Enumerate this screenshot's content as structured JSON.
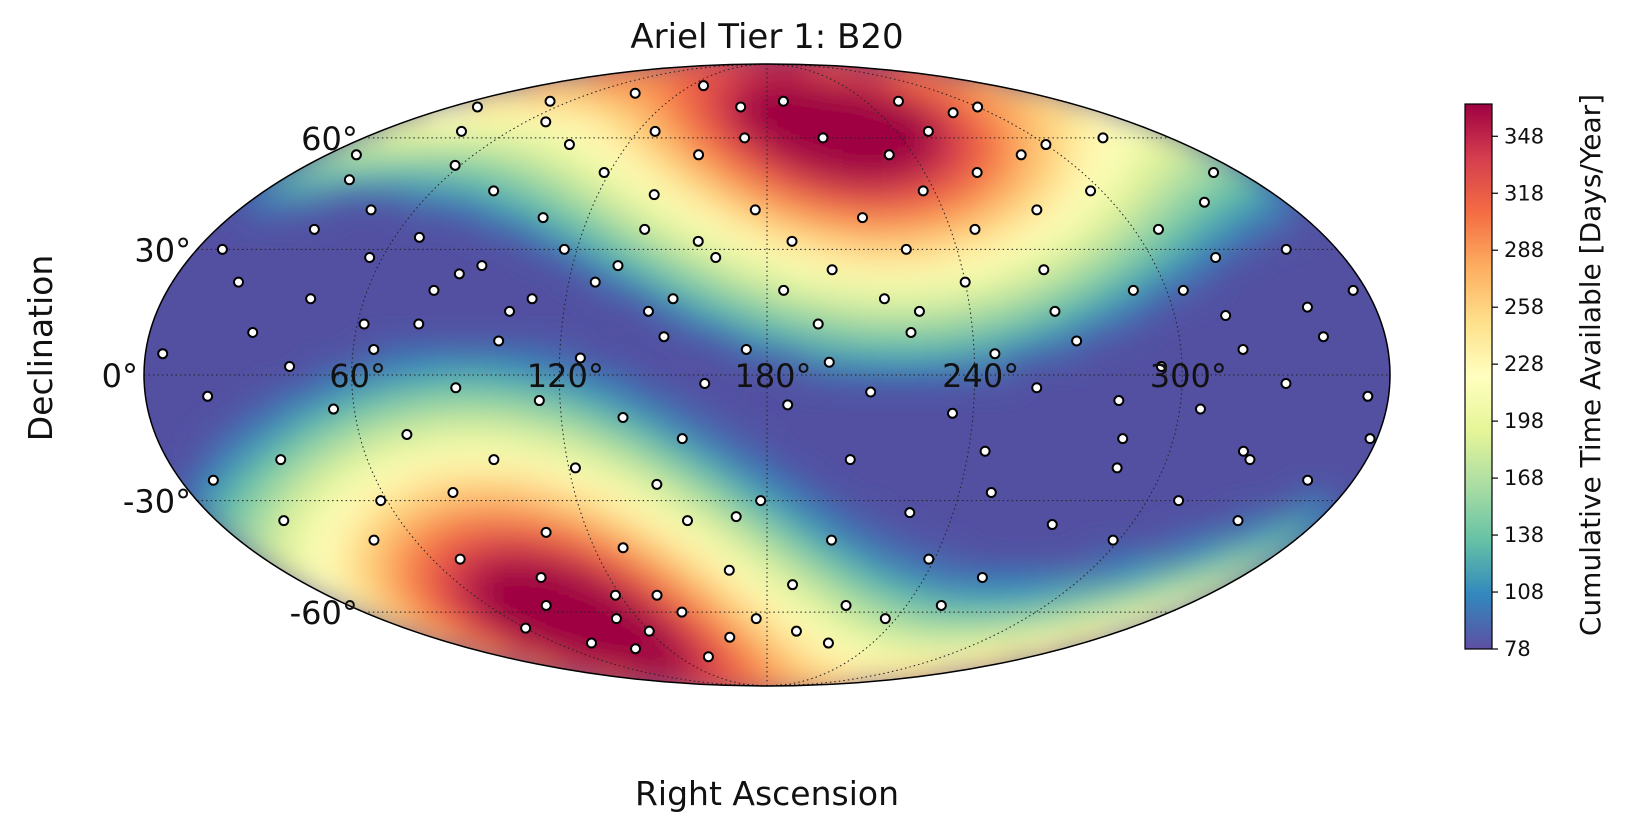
{
  "chart_data": {
    "type": "scatter",
    "projection": "mollweide",
    "title": "Ariel Tier 1: B20",
    "xlabel": "Right Ascension",
    "ylabel": "Declination",
    "x_ticks": [
      {
        "value": 60,
        "label": "60°"
      },
      {
        "value": 120,
        "label": "120°"
      },
      {
        "value": 180,
        "label": "180°"
      },
      {
        "value": 240,
        "label": "240°"
      },
      {
        "value": 300,
        "label": "300°"
      }
    ],
    "y_ticks": [
      {
        "value": 60,
        "label": "60°"
      },
      {
        "value": 30,
        "label": "30°"
      },
      {
        "value": 0,
        "label": "0°"
      },
      {
        "value": -30,
        "label": "-30°"
      },
      {
        "value": -60,
        "label": "-60°"
      }
    ],
    "grid": true,
    "background": {
      "type": "heatmap",
      "quantity": "Cumulative Time Available",
      "colormap": "Spectral_r",
      "min": 78,
      "max": 365,
      "hotspots": [
        {
          "ra": 220,
          "dec": 68,
          "value": 365
        },
        {
          "ra": 95,
          "dec": -62,
          "value": 365
        }
      ]
    },
    "colorbar": {
      "label": "Cumulative Time Available [Days/Year]",
      "range": [
        78,
        365
      ],
      "ticks": [
        78,
        108,
        138,
        168,
        198,
        228,
        258,
        288,
        318,
        348
      ],
      "position": "right"
    },
    "series": [
      {
        "marker": "circle",
        "face_color": "#ffffff",
        "edge_color": "#000000",
        "points": [
          [
            12,
            55
          ],
          [
            25,
            48
          ],
          [
            38,
            62
          ],
          [
            45,
            40
          ],
          [
            58,
            52
          ],
          [
            70,
            65
          ],
          [
            82,
            45
          ],
          [
            95,
            58
          ],
          [
            105,
            38
          ],
          [
            118,
            50
          ],
          [
            128,
            62
          ],
          [
            140,
            44
          ],
          [
            152,
            55
          ],
          [
            165,
            70
          ],
          [
            8,
            30
          ],
          [
            20,
            22
          ],
          [
            32,
            35
          ],
          [
            44,
            18
          ],
          [
            56,
            28
          ],
          [
            68,
            33
          ],
          [
            80,
            20
          ],
          [
            92,
            26
          ],
          [
            104,
            15
          ],
          [
            116,
            30
          ],
          [
            128,
            22
          ],
          [
            140,
            35
          ],
          [
            152,
            18
          ],
          [
            164,
            28
          ],
          [
            176,
            40
          ],
          [
            188,
            32
          ],
          [
            5,
            5
          ],
          [
            18,
            -5
          ],
          [
            30,
            10
          ],
          [
            42,
            2
          ],
          [
            54,
            -8
          ],
          [
            66,
            6
          ],
          [
            78,
            12
          ],
          [
            90,
            -3
          ],
          [
            102,
            8
          ],
          [
            114,
            -6
          ],
          [
            126,
            4
          ],
          [
            138,
            -10
          ],
          [
            150,
            9
          ],
          [
            162,
            -2
          ],
          [
            174,
            6
          ],
          [
            186,
            -7
          ],
          [
            198,
            3
          ],
          [
            210,
            -4
          ],
          [
            222,
            10
          ],
          [
            234,
            -9
          ],
          [
            246,
            5
          ],
          [
            258,
            -3
          ],
          [
            270,
            8
          ],
          [
            282,
            -6
          ],
          [
            294,
            2
          ],
          [
            306,
            -8
          ],
          [
            318,
            6
          ],
          [
            330,
            -2
          ],
          [
            342,
            9
          ],
          [
            354,
            -5
          ],
          [
            10,
            -25
          ],
          [
            22,
            -35
          ],
          [
            34,
            -20
          ],
          [
            46,
            -40
          ],
          [
            58,
            -30
          ],
          [
            70,
            -45
          ],
          [
            82,
            -28
          ],
          [
            94,
            -50
          ],
          [
            106,
            -38
          ],
          [
            118,
            -55
          ],
          [
            130,
            -42
          ],
          [
            142,
            -60
          ],
          [
            154,
            -35
          ],
          [
            166,
            -48
          ],
          [
            178,
            -30
          ],
          [
            190,
            -52
          ],
          [
            202,
            -40
          ],
          [
            214,
            -58
          ],
          [
            226,
            -33
          ],
          [
            238,
            -45
          ],
          [
            250,
            -28
          ],
          [
            262,
            -50
          ],
          [
            274,
            -36
          ],
          [
            286,
            -22
          ],
          [
            298,
            -40
          ],
          [
            310,
            -30
          ],
          [
            322,
            -18
          ],
          [
            334,
            -35
          ],
          [
            346,
            -25
          ],
          [
            358,
            -15
          ],
          [
            200,
            25
          ],
          [
            212,
            38
          ],
          [
            224,
            30
          ],
          [
            236,
            45
          ],
          [
            248,
            35
          ],
          [
            260,
            50
          ],
          [
            272,
            40
          ],
          [
            284,
            55
          ],
          [
            296,
            45
          ],
          [
            308,
            35
          ],
          [
            320,
            28
          ],
          [
            332,
            42
          ],
          [
            344,
            30
          ],
          [
            356,
            20
          ],
          [
            205,
            60
          ],
          [
            230,
            55
          ],
          [
            255,
            62
          ],
          [
            280,
            68
          ],
          [
            300,
            58
          ],
          [
            195,
            12
          ],
          [
            215,
            18
          ],
          [
            240,
            22
          ],
          [
            265,
            15
          ],
          [
            290,
            20
          ],
          [
            315,
            14
          ],
          [
            340,
            16
          ],
          [
            60,
            -65
          ],
          [
            80,
            -70
          ],
          [
            100,
            -72
          ],
          [
            120,
            -66
          ],
          [
            140,
            -75
          ],
          [
            160,
            -68
          ],
          [
            85,
            -58
          ],
          [
            110,
            -62
          ],
          [
            135,
            -55
          ],
          [
            175,
            -62
          ],
          [
            195,
            -66
          ],
          [
            215,
            -70
          ],
          [
            235,
            -62
          ],
          [
            255,
            -58
          ],
          [
            48,
            72
          ],
          [
            90,
            75
          ],
          [
            130,
            78
          ],
          [
            170,
            60
          ],
          [
            190,
            72
          ],
          [
            260,
            72
          ],
          [
            300,
            70
          ],
          [
            330,
            60
          ],
          [
            350,
            50
          ],
          [
            15,
            70
          ],
          [
            145,
            15
          ],
          [
            155,
            -15
          ],
          [
            185,
            20
          ],
          [
            205,
            -20
          ],
          [
            225,
            15
          ],
          [
            245,
            -18
          ],
          [
            265,
            25
          ],
          [
            285,
            -15
          ],
          [
            305,
            20
          ],
          [
            325,
            -20
          ],
          [
            62,
            12
          ],
          [
            74,
            -14
          ],
          [
            86,
            24
          ],
          [
            98,
            -20
          ],
          [
            110,
            18
          ],
          [
            122,
            -22
          ],
          [
            134,
            26
          ],
          [
            146,
            -26
          ],
          [
            158,
            32
          ],
          [
            170,
            -34
          ]
        ]
      }
    ]
  }
}
